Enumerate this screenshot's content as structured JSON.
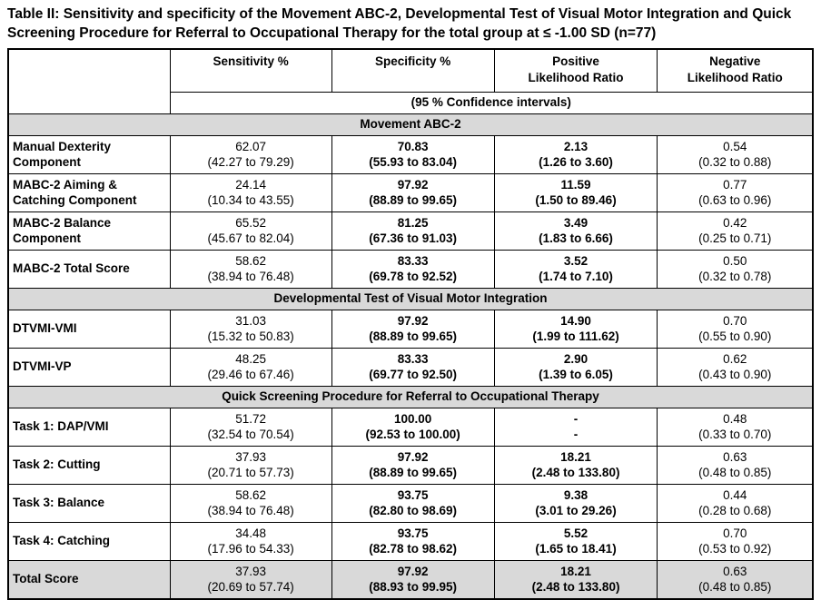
{
  "title": "Table II: Sensitivity and specificity of the Movement ABC-2, Developmental Test of Visual Motor Integration and Quick Screening Procedure for Referral to Occupational Therapy for the total group at ≤ -1.00 SD (n=77)",
  "colors": {
    "section_header_bg": "#d9d9d9",
    "table_border": "#000000",
    "text": "#000000",
    "page_bg": "#ffffff"
  },
  "table": {
    "columns": [
      {
        "lines": [
          "Sensitivity %"
        ]
      },
      {
        "lines": [
          "Specificity %"
        ]
      },
      {
        "lines": [
          "Positive",
          "Likelihood Ratio"
        ]
      },
      {
        "lines": [
          "Negative",
          "Likelihood Ratio"
        ]
      }
    ],
    "subheader": "(95 % Confidence intervals)",
    "sections": [
      {
        "header": "Movement ABC-2",
        "rows": [
          {
            "label": "Manual Dexterity Component",
            "cells": [
              [
                "62.07",
                "(42.27 to 79.29)"
              ],
              [
                "70.83",
                "(55.93 to 83.04)"
              ],
              [
                "2.13",
                "(1.26 to 3.60)"
              ],
              [
                "0.54",
                "(0.32 to 0.88)"
              ]
            ]
          },
          {
            "label": "MABC-2 Aiming & Catching Component",
            "cells": [
              [
                "24.14",
                "(10.34 to 43.55)"
              ],
              [
                "97.92",
                "(88.89 to 99.65)"
              ],
              [
                "11.59",
                "(1.50 to 89.46)"
              ],
              [
                "0.77",
                "(0.63 to 0.96)"
              ]
            ]
          },
          {
            "label": "MABC-2 Balance Component",
            "cells": [
              [
                "65.52",
                "(45.67 to 82.04)"
              ],
              [
                "81.25",
                "(67.36 to 91.03)"
              ],
              [
                "3.49",
                "(1.83 to 6.66)"
              ],
              [
                "0.42",
                "(0.25 to 0.71)"
              ]
            ]
          },
          {
            "label": "MABC-2 Total Score",
            "cells": [
              [
                "58.62",
                "(38.94 to 76.48)"
              ],
              [
                "83.33",
                "(69.78 to 92.52)"
              ],
              [
                "3.52",
                "(1.74 to 7.10)"
              ],
              [
                "0.50",
                "(0.32 to 0.78)"
              ]
            ]
          }
        ]
      },
      {
        "header": "Developmental Test of Visual Motor Integration",
        "rows": [
          {
            "label": "DTVMI-VMI",
            "cells": [
              [
                "31.03",
                "(15.32 to 50.83)"
              ],
              [
                "97.92",
                "(88.89 to 99.65)"
              ],
              [
                "14.90",
                "(1.99 to 111.62)"
              ],
              [
                "0.70",
                "(0.55 to 0.90)"
              ]
            ]
          },
          {
            "label": "DTVMI-VP",
            "cells": [
              [
                "48.25",
                "(29.46 to 67.46)"
              ],
              [
                "83.33",
                "(69.77 to 92.50)"
              ],
              [
                "2.90",
                "(1.39 to 6.05)"
              ],
              [
                "0.62",
                "(0.43 to 0.90)"
              ]
            ]
          }
        ]
      },
      {
        "header": "Quick Screening Procedure for Referral to Occupational Therapy",
        "rows": [
          {
            "label": "Task 1: DAP/VMI",
            "cells": [
              [
                "51.72",
                "(32.54 to 70.54)"
              ],
              [
                "100.00",
                "(92.53 to 100.00)"
              ],
              [
                "-",
                "-"
              ],
              [
                "0.48",
                "(0.33 to 0.70)"
              ]
            ]
          },
          {
            "label": "Task 2: Cutting",
            "cells": [
              [
                "37.93",
                "(20.71 to 57.73)"
              ],
              [
                "97.92",
                "(88.89 to 99.65)"
              ],
              [
                "18.21",
                "(2.48 to 133.80)"
              ],
              [
                "0.63",
                "(0.48 to 0.85)"
              ]
            ]
          },
          {
            "label": "Task 3:  Balance",
            "cells": [
              [
                "58.62",
                "(38.94 to 76.48)"
              ],
              [
                "93.75",
                "(82.80 to 98.69)"
              ],
              [
                "9.38",
                "(3.01 to 29.26)"
              ],
              [
                "0.44",
                "(0.28 to 0.68)"
              ]
            ]
          },
          {
            "label": "Task 4: Catching",
            "cells": [
              [
                "34.48",
                "(17.96 to 54.33)"
              ],
              [
                "93.75",
                "(82.78 to 98.62)"
              ],
              [
                "5.52",
                "(1.65 to 18.41)"
              ],
              [
                "0.70",
                "(0.53 to 0.92)"
              ]
            ]
          },
          {
            "label": "Total Score",
            "highlight": true,
            "cells": [
              [
                "37.93",
                "(20.69 to 57.74)"
              ],
              [
                "97.92",
                "(88.93 to 99.95)"
              ],
              [
                "18.21",
                "(2.48 to 133.80)"
              ],
              [
                "0.63",
                "(0.48 to 0.85)"
              ]
            ]
          }
        ]
      }
    ]
  }
}
